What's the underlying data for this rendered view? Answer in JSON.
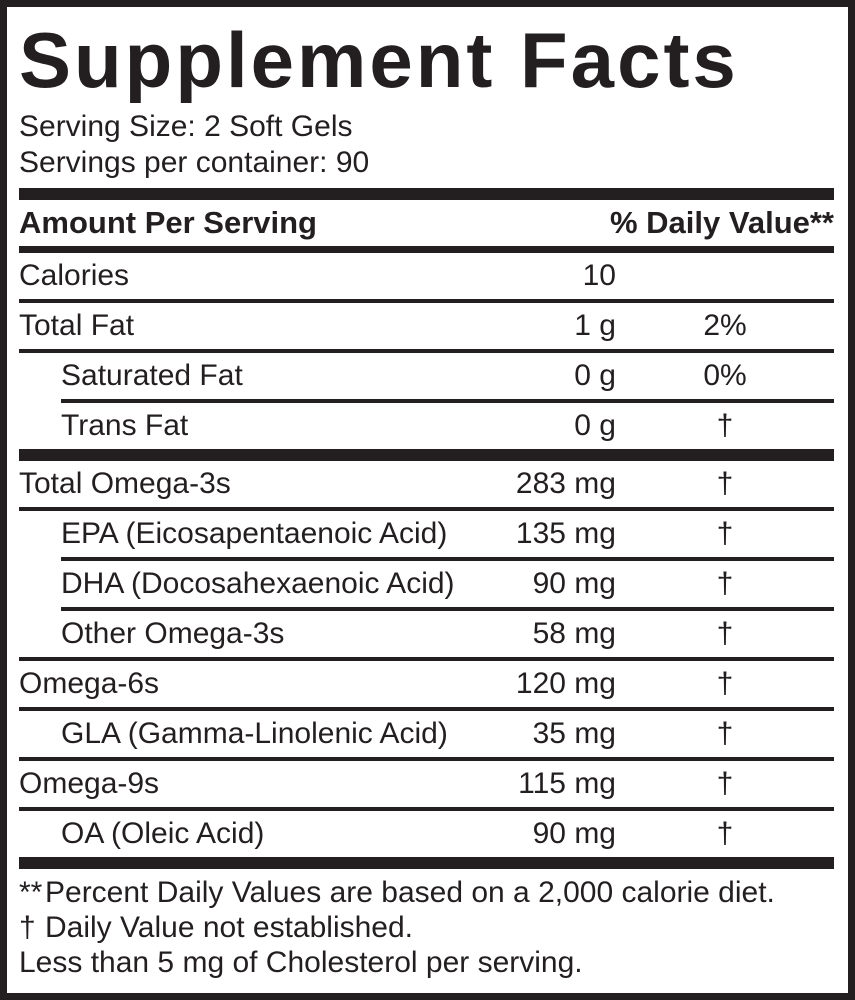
{
  "title": "Supplement Facts",
  "serving": {
    "size_line": "Serving Size: 2 Soft Gels",
    "count_line": "Servings per container: 90"
  },
  "table": {
    "header": {
      "left": "Amount Per Serving",
      "right": "% Daily Value**"
    },
    "rows": [
      {
        "label": "Calories",
        "amount": "10",
        "dv": "",
        "indent": false,
        "divider_after": "thin"
      },
      {
        "label": "Total Fat",
        "amount": "1 g",
        "dv": "2%",
        "indent": false,
        "divider_after": "thin"
      },
      {
        "label": "Saturated Fat",
        "amount": "0 g",
        "dv": "0%",
        "indent": true,
        "divider_after": "thin-indent"
      },
      {
        "label": "Trans Fat",
        "amount": "0 g",
        "dv": "†",
        "indent": true,
        "divider_after": "thick"
      },
      {
        "label": "Total Omega-3s",
        "amount": "283 mg",
        "dv": "†",
        "indent": false,
        "divider_after": "thin"
      },
      {
        "label": "EPA (Eicosapentaenoic Acid)",
        "amount": "135 mg",
        "dv": "†",
        "indent": true,
        "divider_after": "thin-indent"
      },
      {
        "label": "DHA (Docosahexaenoic Acid)",
        "amount": "90 mg",
        "dv": "†",
        "indent": true,
        "divider_after": "thin-indent"
      },
      {
        "label": "Other Omega-3s",
        "amount": "58 mg",
        "dv": "†",
        "indent": true,
        "divider_after": "thin"
      },
      {
        "label": "Omega-6s",
        "amount": "120 mg",
        "dv": "†",
        "indent": false,
        "divider_after": "thin"
      },
      {
        "label": "GLA (Gamma-Linolenic Acid)",
        "amount": "35 mg",
        "dv": "†",
        "indent": true,
        "divider_after": "thin"
      },
      {
        "label": "Omega-9s",
        "amount": "115 mg",
        "dv": "†",
        "indent": false,
        "divider_after": "thin"
      },
      {
        "label": "OA (Oleic Acid)",
        "amount": "90 mg",
        "dv": "†",
        "indent": true,
        "divider_after": "thick"
      }
    ]
  },
  "footnotes": [
    {
      "marker": "**",
      "text": "Percent Daily Values are based on a 2,000 calorie diet."
    },
    {
      "marker": "†",
      "text": "Daily Value not established."
    },
    {
      "marker": "",
      "text": "Less than 5 mg of Cholesterol per serving."
    }
  ],
  "colors": {
    "ink": "#231f20",
    "background": "#ffffff"
  }
}
